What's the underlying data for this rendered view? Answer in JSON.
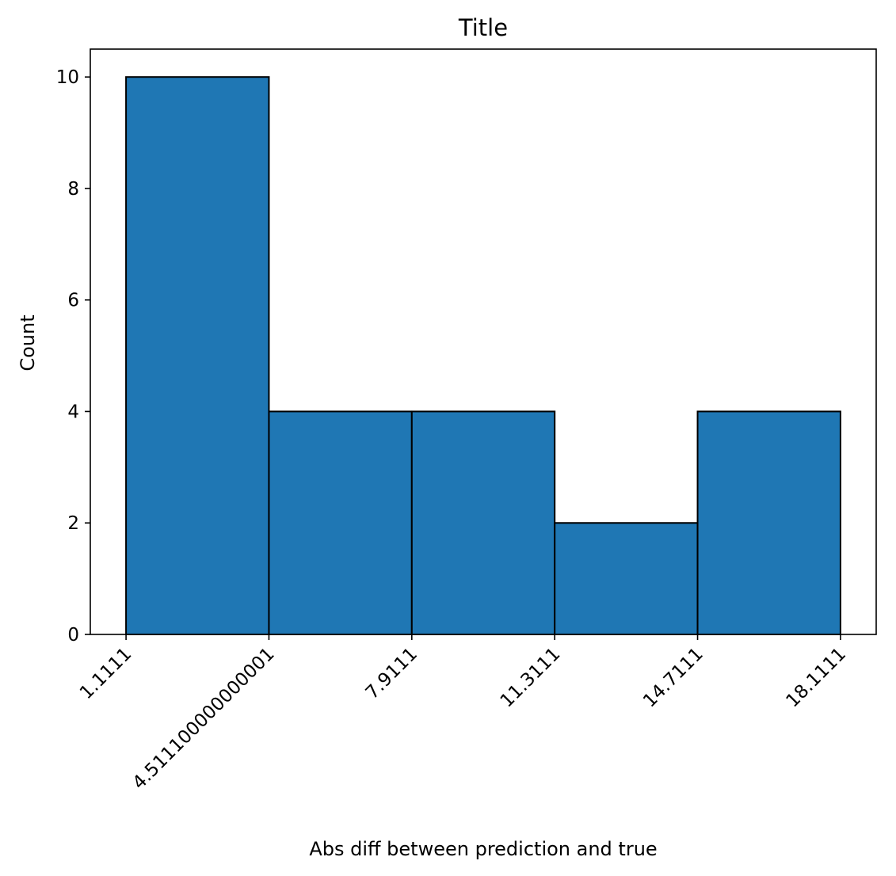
{
  "chart_data": {
    "type": "bar",
    "title": "Title",
    "xlabel": "Abs diff between prediction and true",
    "ylabel": "Count",
    "bin_edges": [
      1.1111,
      4.5111,
      7.9111,
      11.3111,
      14.7111,
      18.1111
    ],
    "counts": [
      10,
      4,
      4,
      2,
      4
    ],
    "x_tick_labels": [
      "1.1111",
      "4.511100000000001",
      "7.9111",
      "11.3111",
      "14.7111",
      "18.1111"
    ],
    "y_ticks": [
      0,
      2,
      4,
      6,
      8,
      10
    ],
    "xlim": [
      0.2611,
      18.9611
    ],
    "ylim": [
      0,
      10.5
    ],
    "bar_color": "#1f77b4",
    "edge_color": "#000000",
    "grid": false,
    "legend": "none"
  }
}
